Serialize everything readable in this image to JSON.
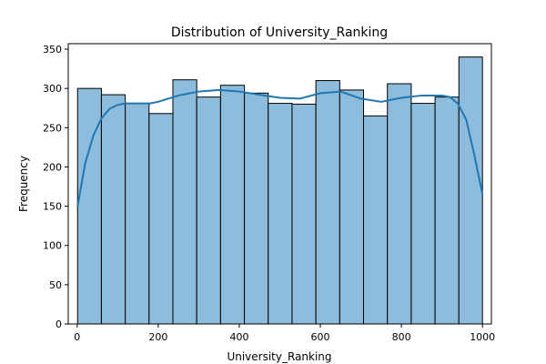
{
  "chart_data": {
    "type": "bar",
    "title": "Distribution of University_Ranking",
    "xlabel": "University_Ranking",
    "ylabel": "Frequency",
    "xlim": [
      -22,
      1022
    ],
    "ylim": [
      0,
      357
    ],
    "xticks": [
      0,
      200,
      400,
      600,
      800,
      1000
    ],
    "yticks": [
      0,
      50,
      100,
      150,
      200,
      250,
      300,
      350
    ],
    "bin_edges": [
      1,
      59.8,
      118.6,
      177.4,
      236.2,
      295,
      353.8,
      412.6,
      471.4,
      530.2,
      589,
      647.8,
      706.6,
      765.4,
      824.2,
      883,
      941.8,
      1000
    ],
    "values": [
      300,
      292,
      281,
      268,
      311,
      289,
      304,
      294,
      281,
      280,
      310,
      298,
      265,
      306,
      281,
      289,
      340
    ],
    "kde": {
      "x": [
        1,
        20,
        40,
        60,
        80,
        100,
        120,
        150,
        180,
        200,
        250,
        300,
        350,
        400,
        450,
        500,
        550,
        600,
        650,
        700,
        750,
        800,
        850,
        900,
        920,
        940,
        960,
        980,
        1000
      ],
      "y": [
        150,
        205,
        240,
        262,
        274,
        279,
        281,
        281,
        281,
        283,
        291,
        296,
        298,
        296,
        292,
        288,
        287,
        294,
        296,
        287,
        283,
        288,
        291,
        291,
        289,
        280,
        260,
        215,
        165
      ]
    },
    "colors": {
      "bar_fill": "#8ebcdd",
      "bar_edge": "#000000",
      "kde_line": "#1f77b4"
    },
    "grid": false,
    "legend": "none"
  }
}
